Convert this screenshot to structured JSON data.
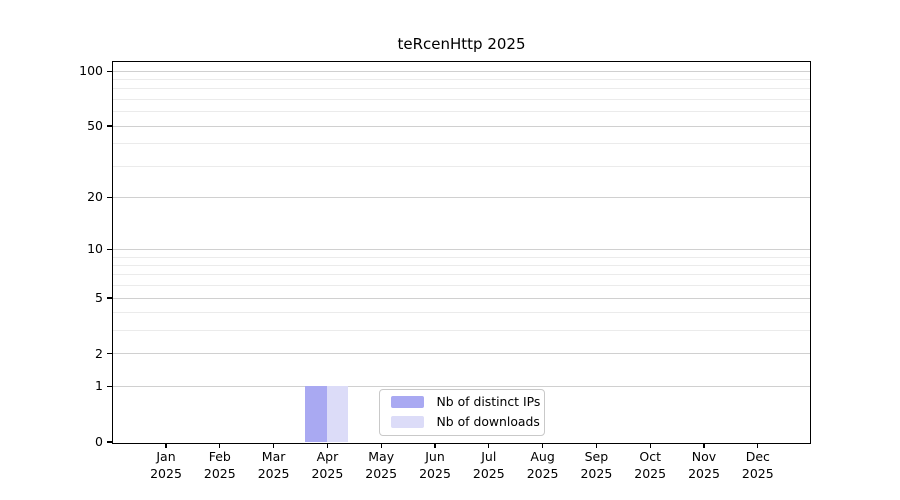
{
  "chart_data": {
    "type": "bar",
    "title": "teRcenHttp 2025",
    "year": "2025",
    "months": [
      "Jan",
      "Feb",
      "Mar",
      "Apr",
      "May",
      "Jun",
      "Jul",
      "Aug",
      "Sep",
      "Oct",
      "Nov",
      "Dec"
    ],
    "y_axis": {
      "scale": "log10(1+value)",
      "major_ticks": [
        0,
        1,
        2,
        5,
        10,
        20,
        50,
        100
      ],
      "minor_gridlines": [
        3,
        4,
        6,
        7,
        8,
        9,
        30,
        40,
        60,
        70,
        80,
        90
      ],
      "ylim": [
        0,
        112
      ]
    },
    "series": [
      {
        "name": "Nb of distinct IPs",
        "color": "#a9a9f2",
        "values": [
          0,
          0,
          0,
          1,
          0,
          0,
          0,
          0,
          0,
          0,
          0,
          0
        ]
      },
      {
        "name": "Nb of downloads",
        "color": "#dcdcf8",
        "values": [
          0,
          0,
          0,
          1,
          0,
          0,
          0,
          0,
          0,
          0,
          0,
          0
        ]
      }
    ],
    "legend_position": "inside-bottom-center",
    "colors": {
      "major_grid": "#d0d0d0",
      "minor_grid": "#ebebeb",
      "spine": "#000000",
      "background": "#ffffff"
    }
  }
}
